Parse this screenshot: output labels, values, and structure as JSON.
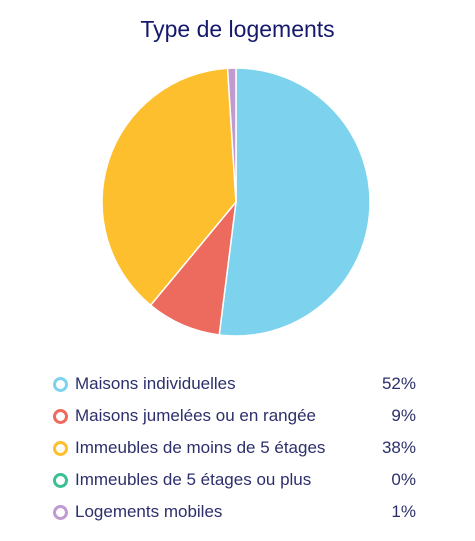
{
  "chart_data": {
    "type": "pie",
    "title": "Type de logements",
    "slices": [
      {
        "label": "Maisons individuelles",
        "value": 52,
        "display": "52%",
        "color": "#7dd3ee"
      },
      {
        "label": "Maisons jumelées ou en rangée",
        "value": 9,
        "display": "9%",
        "color": "#ec6b5e"
      },
      {
        "label": "Immeubles de moins de 5 étages",
        "value": 38,
        "display": "38%",
        "color": "#fdbf2d"
      },
      {
        "label": "Immeubles de 5 étages ou plus",
        "value": 0,
        "display": "0%",
        "color": "#3dbf96"
      },
      {
        "label": "Logements mobiles",
        "value": 1,
        "display": "1%",
        "color": "#c19ad1"
      }
    ],
    "legend_position": "bottom"
  }
}
